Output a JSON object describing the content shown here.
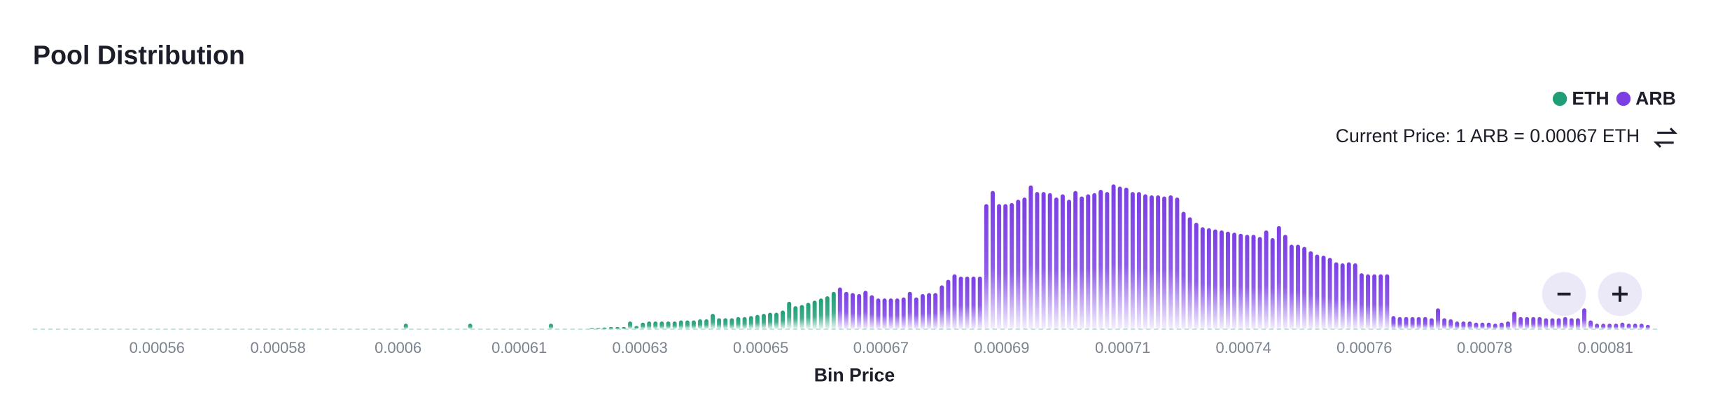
{
  "chart_data": {
    "type": "bar",
    "title": "Pool Distribution",
    "annotation": "Current Price: 1 ARB = 0.00067 ETH",
    "x_label": "Bin Price",
    "x_scale": "log",
    "xlim": [
      0.000543,
      0.000817
    ],
    "ylim": [
      0,
      140
    ],
    "xticks": [
      {
        "value": 0.0005602,
        "label": "0.00056"
      },
      {
        "value": 0.0005775,
        "label": "0.00058"
      },
      {
        "value": 0.0005952,
        "label": "0.0006"
      },
      {
        "value": 0.0006136,
        "label": "0.00061"
      },
      {
        "value": 0.0006325,
        "label": "0.00063"
      },
      {
        "value": 0.000652,
        "label": "0.00065"
      },
      {
        "value": 0.000672,
        "label": "0.00067"
      },
      {
        "value": 0.0006927,
        "label": "0.00069"
      },
      {
        "value": 0.0007141,
        "label": "0.00071"
      },
      {
        "value": 0.0007361,
        "label": "0.00074"
      },
      {
        "value": 0.0007588,
        "label": "0.00076"
      },
      {
        "value": 0.0007821,
        "label": "0.00078"
      },
      {
        "value": 0.0008062,
        "label": "0.00081"
      }
    ],
    "legend": "top-right",
    "series": [
      {
        "name": "ETH",
        "color": "#1f9e78",
        "x": [
          0.00059636,
          0.00060608,
          0.00061851,
          0.0006249,
          0.00062591,
          0.00062691,
          0.00062792,
          0.00062893,
          0.00062994,
          0.00063094,
          0.00063195,
          0.00063296,
          0.00063396,
          0.00063497,
          0.00063599,
          0.00063702,
          0.00063804,
          0.00063906,
          0.00064009,
          0.00064111,
          0.00064213,
          0.00064316,
          0.00064418,
          0.0006452,
          0.00064624,
          0.00064728,
          0.00064832,
          0.00064936,
          0.00065041,
          0.00065145,
          0.00065249,
          0.00065353,
          0.00065457,
          0.00065561,
          0.00065667,
          0.00065772,
          0.00065878,
          0.00065983,
          0.00066089,
          0.00066195,
          0.000663,
          0.00066406
        ],
        "values": [
          5,
          5,
          5,
          1,
          1,
          1.5,
          2,
          2,
          2,
          7,
          3,
          6,
          7,
          7,
          7,
          7,
          7,
          8,
          8,
          8,
          9,
          9,
          14,
          10,
          10,
          10,
          11,
          11,
          12,
          13,
          14,
          15,
          15,
          17,
          25,
          21,
          22,
          24,
          26,
          28,
          30,
          34
        ]
      },
      {
        "name": "ARB",
        "color": "#7b3fe4",
        "x": [
          0.00066511,
          0.00066617,
          0.00066724,
          0.00066832,
          0.00066939,
          0.00067046,
          0.00067154,
          0.00067261,
          0.00067368,
          0.00067475,
          0.00067583,
          0.0006769,
          0.00067799,
          0.00067908,
          0.00068017,
          0.00068126,
          0.00068236,
          0.00068345,
          0.00068454,
          0.00068563,
          0.00068672,
          0.00068781,
          0.00068892,
          0.00069003,
          0.00069114,
          0.00069225,
          0.00069336,
          0.00069446,
          0.00069557,
          0.00069668,
          0.00069779,
          0.0006989,
          0.00070003,
          0.00070115,
          0.00070228,
          0.0007034,
          0.00070453,
          0.00070566,
          0.00070678,
          0.00070791,
          0.00070903,
          0.00071016,
          0.0007113,
          0.00071245,
          0.00071359,
          0.00071474,
          0.00071588,
          0.00071702,
          0.00071817,
          0.00071931,
          0.00072046,
          0.0007216,
          0.00072276,
          0.00072393,
          0.00072509,
          0.00072625,
          0.00072742,
          0.00072858,
          0.00072974,
          0.0007309,
          0.00073207,
          0.00073323,
          0.00073441,
          0.00073559,
          0.00073678,
          0.00073796,
          0.00073914,
          0.00074032,
          0.0007415,
          0.00074269,
          0.00074387,
          0.00074505,
          0.00074625,
          0.00074745,
          0.00074865,
          0.00074985,
          0.00075106,
          0.00075226,
          0.00075346,
          0.00075466,
          0.00075586,
          0.00075706,
          0.00075828,
          0.0007595,
          0.00076072,
          0.00076194,
          0.00076316,
          0.00076438,
          0.0007656,
          0.00076682,
          0.00076804,
          0.00076926,
          0.0007705,
          0.00077174,
          0.00077298,
          0.00077422,
          0.00077546,
          0.0007767,
          0.00077794,
          0.00077918,
          0.00078042,
          0.00078166,
          0.00078292,
          0.00078418,
          0.00078544,
          0.0007867,
          0.00078796,
          0.00078921,
          0.00079047,
          0.00079173,
          0.00079299,
          0.00079425,
          0.00079553,
          0.00079681,
          0.00079809,
          0.00079937,
          0.00080065,
          0.00080193,
          0.00080321,
          0.00080449,
          0.00080577,
          0.00080705,
          0.00080835,
          0.00080965,
          0.00081095,
          0.00081225,
          0.00081355,
          0.00081485
        ],
        "values": [
          38,
          34,
          33,
          32,
          35,
          31,
          28,
          28,
          28,
          28,
          29,
          34,
          29,
          32,
          33,
          33,
          40,
          45,
          50,
          48,
          48,
          48,
          48,
          114,
          126,
          114,
          114,
          115,
          118,
          120,
          131,
          125,
          125,
          124,
          120,
          123,
          118,
          126,
          121,
          123,
          124,
          127,
          125,
          132,
          130,
          129,
          125,
          125,
          123,
          122,
          122,
          121,
          122,
          120,
          107,
          102,
          97,
          93,
          92,
          91,
          90,
          89,
          88,
          87,
          86,
          86,
          84,
          90,
          83,
          94,
          86,
          77,
          77,
          75,
          71,
          68,
          67,
          65,
          61,
          60,
          61,
          60,
          51,
          50,
          50,
          50,
          50,
          12,
          11,
          11,
          11,
          11,
          11,
          10,
          19,
          10,
          9,
          7,
          7,
          7,
          6,
          6,
          6,
          5,
          6,
          7,
          16,
          11,
          11,
          11,
          11,
          10,
          10,
          10,
          11,
          10,
          10,
          19,
          8,
          5,
          5,
          5,
          5,
          6,
          5,
          5,
          5,
          4
        ]
      }
    ]
  }
}
